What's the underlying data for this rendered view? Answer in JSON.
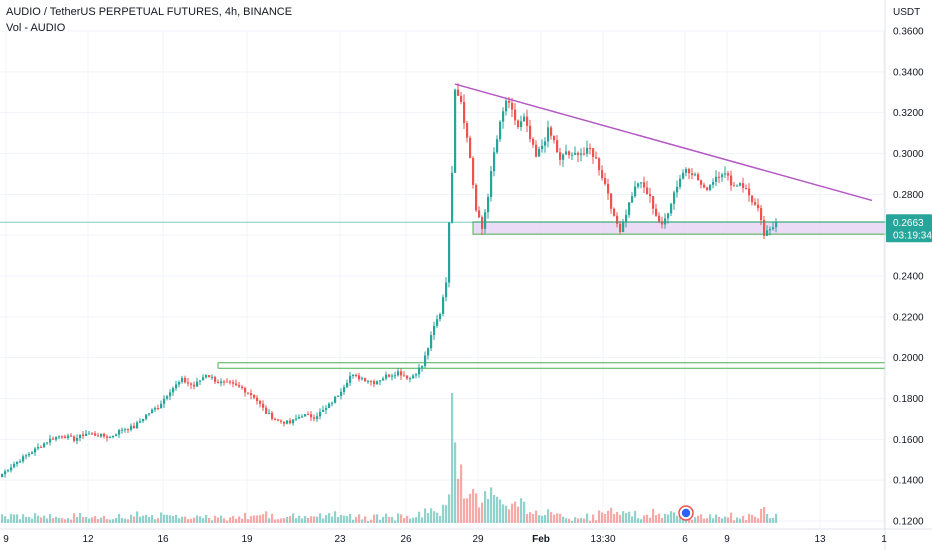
{
  "header": {
    "title": "AUDIO / TetherUS PERPETUAL FUTURES, 4h, BINANCE",
    "volume_label": "Vol - AUDIO"
  },
  "price_axis": {
    "currency": "USDT",
    "ticks": [
      "0.3600",
      "0.3400",
      "0.3200",
      "0.3000",
      "0.2800",
      "0.2600",
      "0.2400",
      "0.2200",
      "0.2000",
      "0.1800",
      "0.1600",
      "0.1400",
      "0.1200"
    ]
  },
  "time_axis": {
    "ticks": [
      "9",
      "12",
      "16",
      "19",
      "23",
      "26",
      "29",
      "Feb",
      "13:30",
      "6",
      "9",
      "13",
      "1"
    ]
  },
  "last_price": {
    "price": "0.2663",
    "countdown": "03:19:34"
  },
  "colors": {
    "up": "#26a69a",
    "down": "#ef5350",
    "trendline": "#b458c4",
    "zone_fill": "#e7d5f5",
    "zone_border": "#4caf50",
    "level_line": "#4caf50",
    "price_tag": "#26a69a"
  },
  "chart_data": {
    "type": "candlestick",
    "symbol": "AUDIO / TetherUS PERPETUAL FUTURES",
    "interval": "4h",
    "exchange": "BINANCE",
    "ylim": [
      0.12,
      0.36
    ],
    "y_unit": "USDT",
    "x_ticks": [
      "9",
      "12",
      "16",
      "19",
      "23",
      "26",
      "29",
      "Feb",
      "13:30",
      "6",
      "9",
      "13",
      "1"
    ],
    "last_price": 0.2663,
    "close_path": [
      [
        0,
        0.143
      ],
      [
        4,
        0.148
      ],
      [
        8,
        0.152
      ],
      [
        12,
        0.156
      ],
      [
        16,
        0.16
      ],
      [
        20,
        0.162
      ],
      [
        24,
        0.16
      ],
      [
        28,
        0.163
      ],
      [
        32,
        0.162
      ],
      [
        36,
        0.161
      ],
      [
        40,
        0.165
      ],
      [
        44,
        0.166
      ],
      [
        48,
        0.172
      ],
      [
        52,
        0.176
      ],
      [
        56,
        0.184
      ],
      [
        60,
        0.189
      ],
      [
        64,
        0.186
      ],
      [
        68,
        0.192
      ],
      [
        72,
        0.188
      ],
      [
        76,
        0.187
      ],
      [
        80,
        0.185
      ],
      [
        84,
        0.181
      ],
      [
        88,
        0.173
      ],
      [
        92,
        0.169
      ],
      [
        96,
        0.168
      ],
      [
        100,
        0.172
      ],
      [
        104,
        0.171
      ],
      [
        108,
        0.175
      ],
      [
        112,
        0.182
      ],
      [
        116,
        0.191
      ],
      [
        120,
        0.19
      ],
      [
        124,
        0.188
      ],
      [
        128,
        0.191
      ],
      [
        132,
        0.193
      ],
      [
        136,
        0.19
      ],
      [
        140,
        0.196
      ],
      [
        142,
        0.205
      ],
      [
        144,
        0.215
      ],
      [
        146,
        0.222
      ],
      [
        148,
        0.238
      ],
      [
        150,
        0.292
      ],
      [
        151,
        0.333
      ],
      [
        153,
        0.326
      ],
      [
        156,
        0.298
      ],
      [
        158,
        0.272
      ],
      [
        160,
        0.263
      ],
      [
        162,
        0.28
      ],
      [
        164,
        0.3
      ],
      [
        166,
        0.314
      ],
      [
        168,
        0.326
      ],
      [
        170,
        0.32
      ],
      [
        172,
        0.313
      ],
      [
        174,
        0.317
      ],
      [
        176,
        0.307
      ],
      [
        178,
        0.298
      ],
      [
        180,
        0.304
      ],
      [
        182,
        0.311
      ],
      [
        184,
        0.306
      ],
      [
        186,
        0.296
      ],
      [
        188,
        0.301
      ],
      [
        190,
        0.298
      ],
      [
        192,
        0.301
      ],
      [
        194,
        0.3
      ],
      [
        196,
        0.302
      ],
      [
        198,
        0.297
      ],
      [
        200,
        0.289
      ],
      [
        202,
        0.281
      ],
      [
        204,
        0.268
      ],
      [
        206,
        0.263
      ],
      [
        208,
        0.271
      ],
      [
        210,
        0.28
      ],
      [
        212,
        0.286
      ],
      [
        214,
        0.283
      ],
      [
        216,
        0.278
      ],
      [
        218,
        0.27
      ],
      [
        220,
        0.264
      ],
      [
        222,
        0.272
      ],
      [
        224,
        0.281
      ],
      [
        226,
        0.288
      ],
      [
        228,
        0.293
      ],
      [
        230,
        0.291
      ],
      [
        232,
        0.287
      ],
      [
        234,
        0.282
      ],
      [
        236,
        0.285
      ],
      [
        238,
        0.289
      ],
      [
        240,
        0.291
      ],
      [
        242,
        0.288
      ],
      [
        244,
        0.284
      ],
      [
        246,
        0.286
      ],
      [
        248,
        0.282
      ],
      [
        250,
        0.277
      ],
      [
        252,
        0.272
      ],
      [
        254,
        0.26
      ],
      [
        256,
        0.262
      ],
      [
        258,
        0.2663
      ]
    ],
    "volume_peaks": [
      {
        "x": 150,
        "volume": 1.0
      },
      {
        "x": 151,
        "volume": 0.62
      },
      {
        "x": 152,
        "volume": 0.34
      },
      {
        "x": 153,
        "volume": 0.45
      },
      {
        "x": 149,
        "volume": 0.22
      }
    ],
    "trendline": {
      "from": {
        "x": 151,
        "price": 0.334
      },
      "to": {
        "x": 290,
        "price": 0.277
      }
    },
    "support_zone": {
      "x_start": 157,
      "x_end": 308,
      "price_low": 0.2605,
      "price_high": 0.2665
    },
    "horizontal_level": {
      "x_start": 72,
      "price_a": 0.1975,
      "price_b": 0.1948
    }
  }
}
